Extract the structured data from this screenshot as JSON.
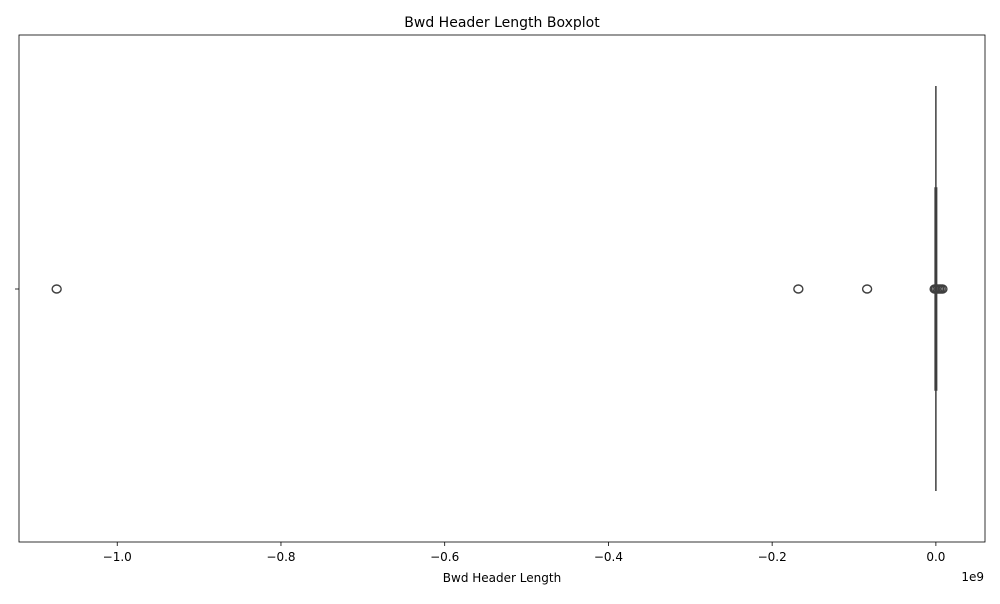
{
  "chart_data": {
    "type": "boxplot",
    "title": "Bwd Header Length Boxplot",
    "xlabel": "Bwd Header Length",
    "ylabel": "",
    "xlim": [
      -1.12,
      0.06
    ],
    "x_scale_label": "1e9",
    "x_scale_factor": 1000000000,
    "x_ticks": [
      -1.0,
      -0.8,
      -0.6,
      -0.4,
      -0.2,
      0.0
    ],
    "x_tick_labels": [
      "−1.0",
      "−0.8",
      "−0.6",
      "−0.4",
      "−0.2",
      "0.0"
    ],
    "orientation": "horizontal",
    "box": {
      "q1": 0.0,
      "median": 0.0,
      "q3": 0.0,
      "whisker_low": 0.0,
      "whisker_high": 0.0
    },
    "outliers": [
      -1.074,
      -0.168,
      -0.084,
      -0.0015,
      0.0,
      0.002,
      0.004,
      0.006,
      0.008
    ],
    "color": "#1f77b4",
    "line_color": "#3f3f3f",
    "grid": false
  }
}
